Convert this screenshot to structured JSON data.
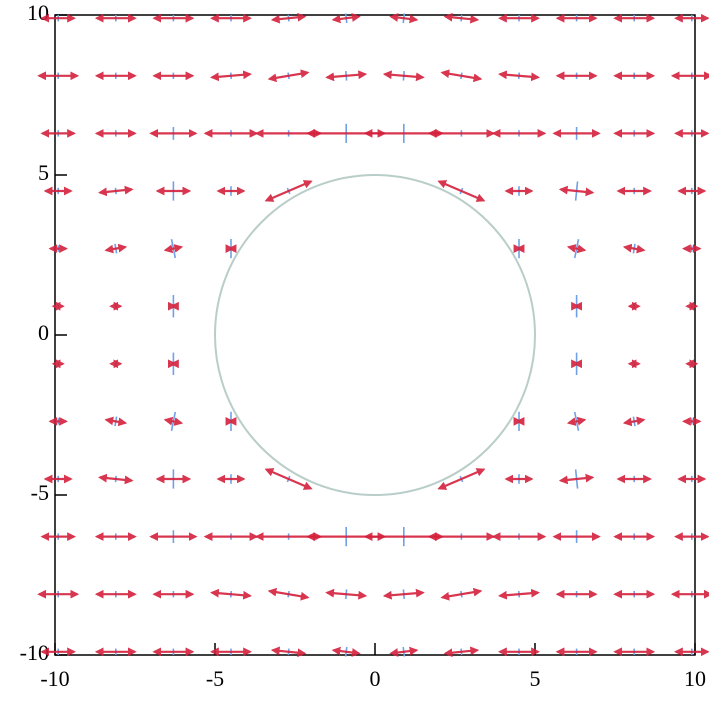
{
  "chart_data": {
    "type": "quiver",
    "x": [
      -9.9,
      -8.1,
      -6.3,
      -4.5,
      -2.7,
      -0.9,
      0.9,
      2.7,
      4.5,
      6.3,
      8.1,
      9.9
    ],
    "y": [
      9.9,
      8.1,
      6.3,
      4.5,
      2.7,
      0.9,
      -0.9,
      -2.7,
      -4.5,
      -6.3,
      -8.1,
      -9.9
    ],
    "series": [
      {
        "color": "#d4203c",
        "u": [
          [
            0.5,
            0.6,
            0.6,
            0.6,
            0.5,
            0.4,
            0.4,
            0.5,
            0.6,
            0.6,
            0.6,
            0.5
          ],
          [
            0.6,
            0.6,
            0.6,
            0.6,
            0.6,
            0.6,
            0.6,
            0.6,
            0.6,
            0.6,
            0.6,
            0.6
          ],
          [
            0.5,
            0.6,
            0.7,
            0.8,
            1.0,
            1.2,
            1.2,
            1.0,
            0.8,
            0.7,
            0.6,
            0.5
          ],
          [
            0.4,
            0.5,
            0.5,
            0.4,
            0.7,
            null,
            null,
            0.7,
            0.4,
            0.5,
            0.5,
            0.4
          ],
          [
            0.25,
            0.3,
            0.25,
            0.05,
            null,
            null,
            null,
            null,
            0.05,
            0.25,
            0.3,
            0.25
          ],
          [
            0.15,
            0.15,
            0.05,
            null,
            null,
            null,
            null,
            null,
            null,
            0.05,
            0.15,
            0.15
          ],
          [
            0.15,
            0.15,
            0.05,
            null,
            null,
            null,
            null,
            null,
            null,
            0.05,
            0.15,
            0.15
          ],
          [
            0.25,
            0.3,
            0.25,
            0.05,
            null,
            null,
            null,
            null,
            0.05,
            0.25,
            0.3,
            0.25
          ],
          [
            0.4,
            0.5,
            0.5,
            0.4,
            0.7,
            null,
            null,
            0.7,
            0.4,
            0.5,
            0.5,
            0.4
          ],
          [
            0.5,
            0.6,
            0.7,
            0.8,
            1.0,
            1.2,
            1.2,
            1.0,
            0.8,
            0.7,
            0.6,
            0.5
          ],
          [
            0.6,
            0.6,
            0.6,
            0.6,
            0.6,
            0.6,
            0.6,
            0.6,
            0.6,
            0.6,
            0.6,
            0.6
          ],
          [
            0.5,
            0.6,
            0.6,
            0.6,
            0.5,
            0.4,
            0.4,
            0.5,
            0.6,
            0.6,
            0.6,
            0.5
          ]
        ],
        "v": [
          [
            0,
            0,
            0,
            0,
            0.05,
            0.05,
            -0.05,
            -0.05,
            0,
            0,
            0,
            0
          ],
          [
            0,
            0,
            0,
            0.05,
            0.1,
            0.05,
            -0.05,
            -0.1,
            -0.05,
            0,
            0,
            0
          ],
          [
            0,
            0,
            0,
            0,
            0,
            0,
            0,
            0,
            0,
            0,
            0,
            0
          ],
          [
            0,
            0.05,
            0,
            0,
            0.3,
            null,
            null,
            -0.3,
            0,
            -0.05,
            0,
            0
          ],
          [
            0,
            0.05,
            0.05,
            0,
            null,
            null,
            null,
            null,
            0,
            -0.05,
            -0.05,
            0
          ],
          [
            0,
            0,
            0,
            null,
            null,
            null,
            null,
            null,
            null,
            0,
            0,
            0
          ],
          [
            0,
            0,
            0,
            null,
            null,
            null,
            null,
            null,
            null,
            0,
            0,
            0
          ],
          [
            0,
            -0.05,
            -0.05,
            0,
            null,
            null,
            null,
            null,
            0,
            0.05,
            0.05,
            0
          ],
          [
            0,
            -0.05,
            0,
            0,
            -0.3,
            null,
            null,
            0.3,
            0,
            0.05,
            0,
            0
          ],
          [
            0,
            0,
            0,
            0,
            0,
            0,
            0,
            0,
            0,
            0,
            0,
            0
          ],
          [
            0,
            0,
            0,
            -0.05,
            -0.1,
            -0.05,
            0.05,
            0.1,
            0.05,
            0,
            0,
            0
          ],
          [
            0,
            0,
            0,
            0,
            -0.05,
            -0.05,
            0.05,
            0.05,
            0,
            0,
            0,
            0
          ]
        ]
      },
      {
        "color": "#6fa0e8",
        "values": [
          [
            0.1,
            0.1,
            0.1,
            0.1,
            0.1,
            0.15,
            0.15,
            0.1,
            0.1,
            0.1,
            0.1,
            0.1
          ],
          [
            0.1,
            0.1,
            0.1,
            0.1,
            0.1,
            0.15,
            0.15,
            0.1,
            0.1,
            0.1,
            0.1,
            0.1
          ],
          [
            0.1,
            0.1,
            0.2,
            0.1,
            0.1,
            0.3,
            0.3,
            0.1,
            0.1,
            0.2,
            0.1,
            0.1
          ],
          [
            0.1,
            0.1,
            0.3,
            0.15,
            0.1,
            null,
            null,
            0.1,
            0.15,
            0.3,
            0.1,
            0.1
          ],
          [
            0.1,
            0.15,
            0.3,
            0.3,
            null,
            null,
            null,
            null,
            0.3,
            0.3,
            0.15,
            0.1
          ],
          [
            0.05,
            0.1,
            0.35,
            null,
            null,
            null,
            null,
            null,
            null,
            0.35,
            0.1,
            0.05
          ],
          [
            0.05,
            0.1,
            0.35,
            null,
            null,
            null,
            null,
            null,
            null,
            0.35,
            0.1,
            0.05
          ],
          [
            0.1,
            0.15,
            0.3,
            0.3,
            null,
            null,
            null,
            null,
            0.3,
            0.3,
            0.15,
            0.1
          ],
          [
            0.1,
            0.1,
            0.3,
            0.15,
            0.1,
            null,
            null,
            0.1,
            0.15,
            0.3,
            0.1,
            0.1
          ],
          [
            0.1,
            0.1,
            0.2,
            0.1,
            0.1,
            0.3,
            0.3,
            0.1,
            0.1,
            0.2,
            0.1,
            0.1
          ],
          [
            0.1,
            0.1,
            0.1,
            0.1,
            0.1,
            0.15,
            0.15,
            0.1,
            0.1,
            0.1,
            0.1,
            0.1
          ],
          [
            0.1,
            0.1,
            0.1,
            0.1,
            0.1,
            0.15,
            0.15,
            0.1,
            0.1,
            0.1,
            0.1,
            0.1
          ]
        ]
      }
    ],
    "circle": {
      "cx": 0,
      "cy": 0,
      "r": 5,
      "color": "#b9cdc9"
    },
    "xlim": [
      -10,
      10
    ],
    "ylim": [
      -10,
      10
    ],
    "xticks": [
      -10,
      -5,
      0,
      5,
      10
    ],
    "yticks": [
      -10,
      -5,
      0,
      5,
      10
    ]
  }
}
